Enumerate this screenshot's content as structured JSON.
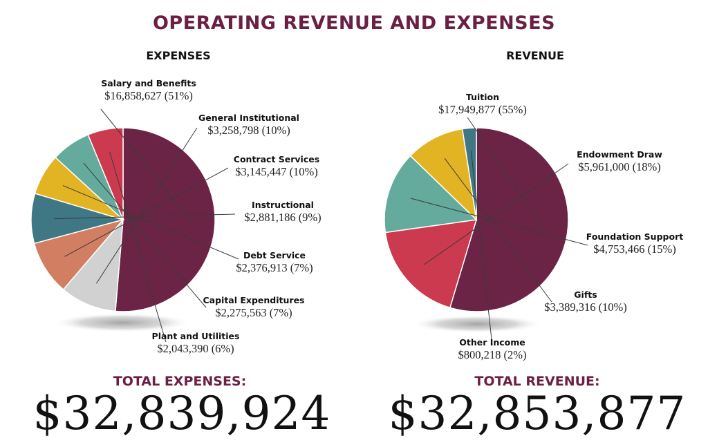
{
  "title": "OPERATING REVENUE AND EXPENSES",
  "expenses": {
    "title": "EXPENSES",
    "total_label": "TOTAL EXPENSES:",
    "total_value": "$32,839,924"
  },
  "revenue": {
    "title": "REVENUE",
    "total_label": "TOTAL REVENUE:",
    "total_value": "$32,853,877"
  },
  "chart_data": [
    {
      "type": "pie",
      "title": "EXPENSES",
      "slices": [
        {
          "label": "Salary and Benefits",
          "amount": 16858627,
          "value_text": "$16,858,627 (51%)",
          "percent": 51,
          "color": "#6b2446"
        },
        {
          "label": "General Institutional",
          "amount": 3258798,
          "value_text": "$3,258,798 (10%)",
          "percent": 10,
          "color": "#d1d1d1"
        },
        {
          "label": "Contract Services",
          "amount": 3145447,
          "value_text": "$3,145,447 (10%)",
          "percent": 10,
          "color": "#d17e63"
        },
        {
          "label": "Instructional",
          "amount": 2881186,
          "value_text": "$2,881,186 (9%)",
          "percent": 9,
          "color": "#3f7785"
        },
        {
          "label": "Debt Service",
          "amount": 2376913,
          "value_text": "$2,376,913 (7%)",
          "percent": 7,
          "color": "#e2b424"
        },
        {
          "label": "Capital Expenditures",
          "amount": 2275563,
          "value_text": "$2,275,563 (7%)",
          "percent": 7,
          "color": "#64ab9d"
        },
        {
          "label": "Plant and Utilities",
          "amount": 2043390,
          "value_text": "$2,043,390 (6%)",
          "percent": 6,
          "color": "#cc3a50"
        }
      ]
    },
    {
      "type": "pie",
      "title": "REVENUE",
      "slices": [
        {
          "label": "Tuition",
          "amount": 17949877,
          "value_text": "$17,949,877 (55%)",
          "percent": 55,
          "color": "#6b2446"
        },
        {
          "label": "Endowment Draw",
          "amount": 5961000,
          "value_text": "$5,961,000 (18%)",
          "percent": 18,
          "color": "#cc3a50"
        },
        {
          "label": "Foundation Support",
          "amount": 4753466,
          "value_text": "$4,753,466 (15%)",
          "percent": 15,
          "color": "#64ab9d"
        },
        {
          "label": "Gifts",
          "amount": 3389316,
          "value_text": "$3,389,316 (10%)",
          "percent": 10,
          "color": "#e2b424"
        },
        {
          "label": "Other Income",
          "amount": 800218,
          "value_text": "$800,218 (2%)",
          "percent": 2,
          "color": "#3f7785"
        }
      ]
    }
  ]
}
